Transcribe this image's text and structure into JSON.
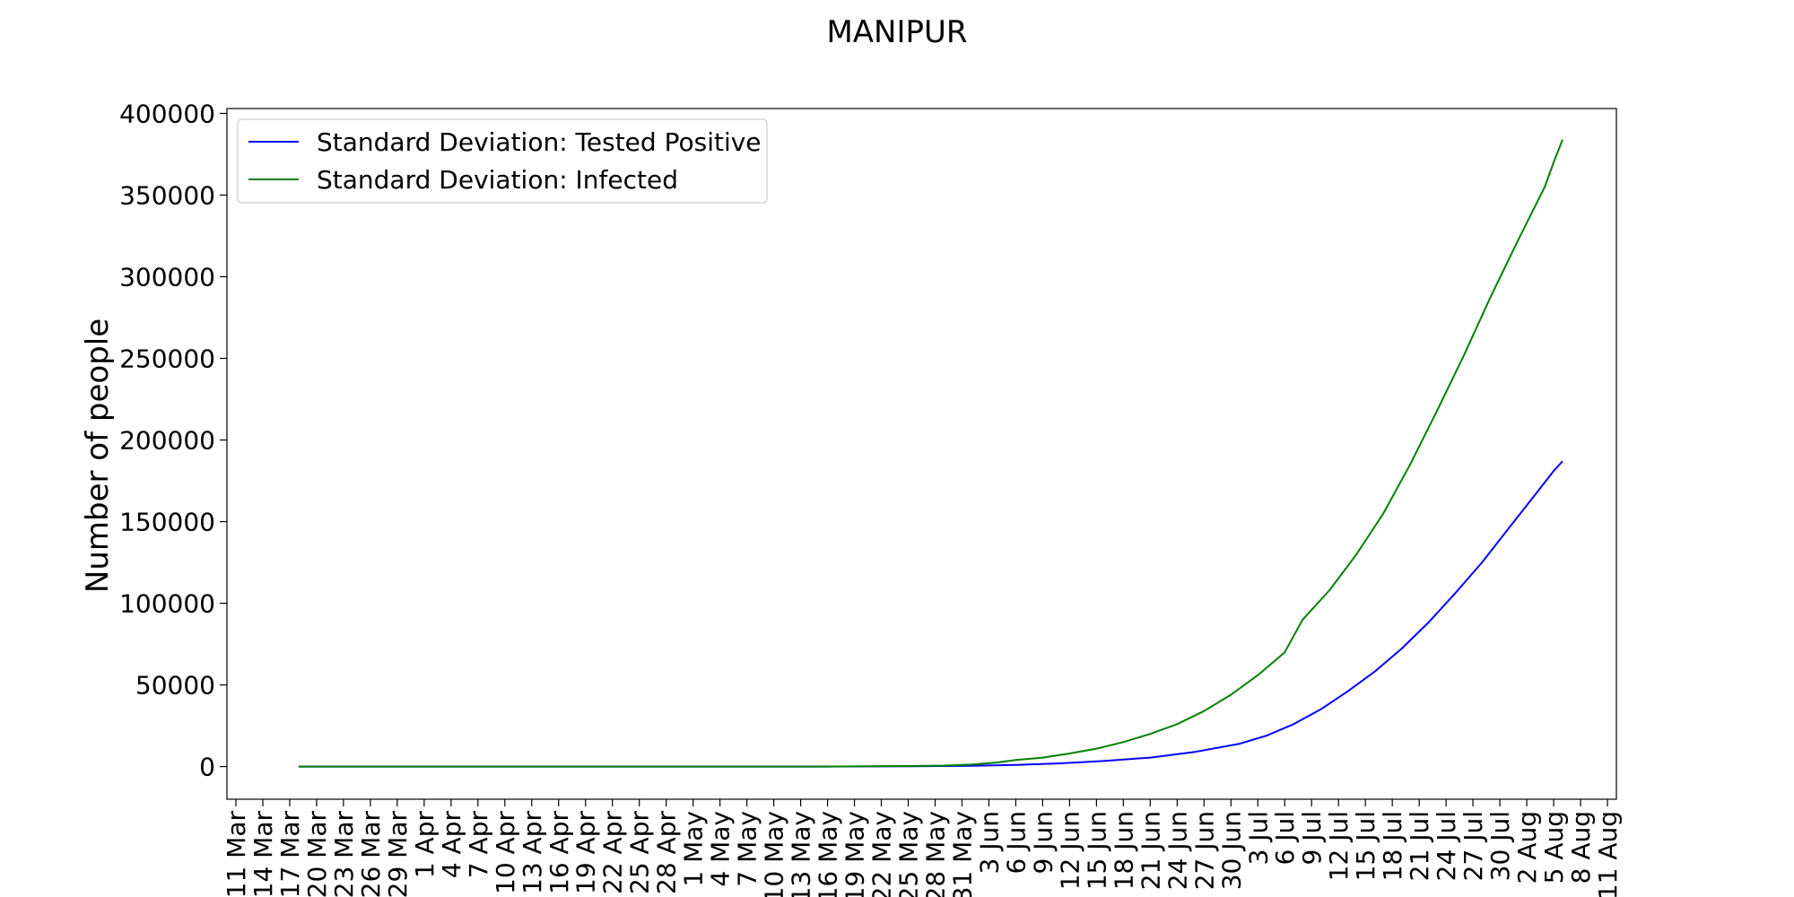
{
  "chart_data": {
    "type": "line",
    "title": "MANIPUR",
    "xlabel": "",
    "ylabel": "Number of people",
    "ylim": [
      -20000,
      403000
    ],
    "yticks": [
      0,
      50000,
      100000,
      150000,
      200000,
      250000,
      300000,
      350000,
      400000
    ],
    "xlim_dates": [
      "2020-03-10",
      "2020-08-12"
    ],
    "xtick_labels": [
      "11 Mar",
      "14 Mar",
      "17 Mar",
      "20 Mar",
      "23 Mar",
      "26 Mar",
      "29 Mar",
      "1 Apr",
      "4 Apr",
      "7 Apr",
      "10 Apr",
      "13 Apr",
      "16 Apr",
      "19 Apr",
      "22 Apr",
      "25 Apr",
      "28 Apr",
      "1 May",
      "4 May",
      "7 May",
      "10 May",
      "13 May",
      "16 May",
      "19 May",
      "22 May",
      "25 May",
      "28 May",
      "31 May",
      "3 Jun",
      "6 Jun",
      "9 Jun",
      "12 Jun",
      "15 Jun",
      "18 Jun",
      "21 Jun",
      "24 Jun",
      "27 Jun",
      "30 Jun",
      "3 Jul",
      "6 Jul",
      "9 Jul",
      "12 Jul",
      "15 Jul",
      "18 Jul",
      "21 Jul",
      "24 Jul",
      "27 Jul",
      "30 Jul",
      "2 Aug",
      "5 Aug",
      "8 Aug",
      "11 Aug"
    ],
    "xtick_dates": [
      "2020-03-11",
      "2020-03-14",
      "2020-03-17",
      "2020-03-20",
      "2020-03-23",
      "2020-03-26",
      "2020-03-29",
      "2020-04-01",
      "2020-04-04",
      "2020-04-07",
      "2020-04-10",
      "2020-04-13",
      "2020-04-16",
      "2020-04-19",
      "2020-04-22",
      "2020-04-25",
      "2020-04-28",
      "2020-05-01",
      "2020-05-04",
      "2020-05-07",
      "2020-05-10",
      "2020-05-13",
      "2020-05-16",
      "2020-05-19",
      "2020-05-22",
      "2020-05-25",
      "2020-05-28",
      "2020-05-31",
      "2020-06-03",
      "2020-06-06",
      "2020-06-09",
      "2020-06-12",
      "2020-06-15",
      "2020-06-18",
      "2020-06-21",
      "2020-06-24",
      "2020-06-27",
      "2020-06-30",
      "2020-07-03",
      "2020-07-06",
      "2020-07-09",
      "2020-07-12",
      "2020-07-15",
      "2020-07-18",
      "2020-07-21",
      "2020-07-24",
      "2020-07-27",
      "2020-07-30",
      "2020-08-02",
      "2020-08-05",
      "2020-08-08",
      "2020-08-11"
    ],
    "grid": false,
    "legend_position": "top-left",
    "series": [
      {
        "name": "Standard Deviation: Tested Positive",
        "color": "#0000ff",
        "points": [
          [
            "2020-03-18",
            0
          ],
          [
            "2020-04-15",
            0
          ],
          [
            "2020-05-15",
            0
          ],
          [
            "2020-05-25",
            150
          ],
          [
            "2020-06-01",
            500
          ],
          [
            "2020-06-06",
            1000
          ],
          [
            "2020-06-11",
            2000
          ],
          [
            "2020-06-16",
            3500
          ],
          [
            "2020-06-21",
            5500
          ],
          [
            "2020-06-26",
            9000
          ],
          [
            "2020-07-01",
            14000
          ],
          [
            "2020-07-04",
            19000
          ],
          [
            "2020-07-07",
            26000
          ],
          [
            "2020-07-10",
            35000
          ],
          [
            "2020-07-13",
            46000
          ],
          [
            "2020-07-16",
            58000
          ],
          [
            "2020-07-19",
            72000
          ],
          [
            "2020-07-22",
            88000
          ],
          [
            "2020-07-25",
            106000
          ],
          [
            "2020-07-28",
            125000
          ],
          [
            "2020-07-31",
            146000
          ],
          [
            "2020-08-03",
            167000
          ],
          [
            "2020-08-05",
            181000
          ],
          [
            "2020-08-06",
            187000
          ]
        ]
      },
      {
        "name": "Standard Deviation: Infected",
        "color": "#008000",
        "points": [
          [
            "2020-03-18",
            0
          ],
          [
            "2020-04-15",
            0
          ],
          [
            "2020-05-15",
            0
          ],
          [
            "2020-05-25",
            300
          ],
          [
            "2020-05-29",
            600
          ],
          [
            "2020-06-01",
            1200
          ],
          [
            "2020-06-04",
            2500
          ],
          [
            "2020-06-06",
            4000
          ],
          [
            "2020-06-09",
            5500
          ],
          [
            "2020-06-12",
            8000
          ],
          [
            "2020-06-15",
            11000
          ],
          [
            "2020-06-18",
            15000
          ],
          [
            "2020-06-21",
            20000
          ],
          [
            "2020-06-24",
            26000
          ],
          [
            "2020-06-27",
            34000
          ],
          [
            "2020-06-30",
            44000
          ],
          [
            "2020-07-03",
            56000
          ],
          [
            "2020-07-06",
            70000
          ],
          [
            "2020-07-08",
            90000
          ],
          [
            "2020-07-11",
            108000
          ],
          [
            "2020-07-14",
            130000
          ],
          [
            "2020-07-17",
            155000
          ],
          [
            "2020-07-20",
            185000
          ],
          [
            "2020-07-23",
            218000
          ],
          [
            "2020-07-26",
            252000
          ],
          [
            "2020-07-29",
            288000
          ],
          [
            "2020-08-01",
            322000
          ],
          [
            "2020-08-04",
            355000
          ],
          [
            "2020-08-05",
            370000
          ],
          [
            "2020-08-06",
            384000
          ]
        ]
      }
    ]
  }
}
